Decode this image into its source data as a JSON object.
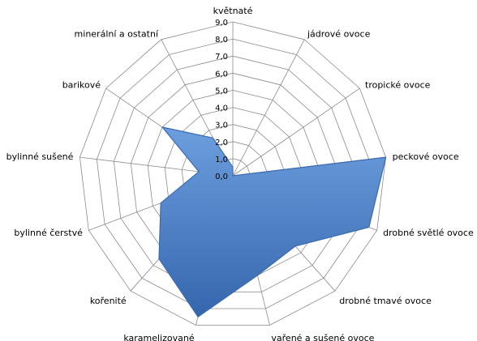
{
  "chart_data": {
    "type": "radar",
    "categories": [
      "květnaté",
      "jádrové ovoce",
      "tropické ovoce",
      "peckové ovoce",
      "drobné světlé ovoce",
      "drobné tmavé ovoce",
      "vařené a sušené ovoce",
      "karamelizované",
      "kořenité",
      "bylinné čerstvé",
      "bylinné sušené",
      "barikové",
      "minerální a ostatní"
    ],
    "series": [
      {
        "values": [
          0.5,
          0.0,
          0.0,
          9.0,
          8.5,
          5.5,
          6.0,
          8.5,
          6.5,
          4.5,
          2.0,
          5.0,
          2.5
        ]
      }
    ],
    "rlim": [
      0,
      9
    ],
    "ticks": [
      "0,0",
      "1,0",
      "2,0",
      "3,0",
      "4,0",
      "5,0",
      "6,0",
      "7,0",
      "8,0",
      "9,0"
    ],
    "grid": true,
    "fill_color": "#4a7ebb",
    "stroke_color": "#3a6bb0",
    "grid_color": "#8c8c8c"
  }
}
